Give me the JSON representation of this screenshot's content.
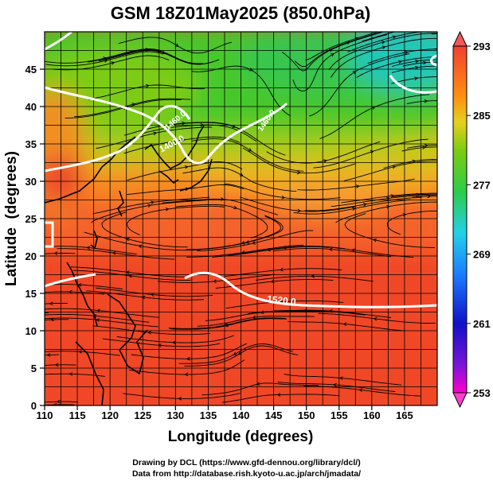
{
  "chart_data": {
    "type": "heatmap",
    "title": "GSM 18Z01May2025 (850.0hPa)",
    "xlabel": "Longitude (degrees)",
    "ylabel": "Latitude  (degrees)",
    "xlim": [
      110,
      170
    ],
    "ylim": [
      0,
      50
    ],
    "x_ticks": [
      110,
      115,
      120,
      125,
      130,
      135,
      140,
      145,
      150,
      155,
      160,
      165
    ],
    "y_ticks": [
      0,
      5,
      10,
      15,
      20,
      25,
      30,
      35,
      40,
      45
    ],
    "colorbar": {
      "variable": "temperature (K)",
      "ticks": [
        253,
        261,
        269,
        277,
        285,
        293
      ],
      "range": [
        253,
        293
      ]
    },
    "contour_labels": [
      {
        "text": "1400.0",
        "lon": 129,
        "lat": 38
      },
      {
        "text": "1520.0",
        "lon": 146,
        "lat": 14
      },
      {
        "text": "1460.0",
        "lon": 129.5,
        "lat": 41
      },
      {
        "text": "1460.0",
        "lon": 147,
        "lat": 41.5
      }
    ]
  },
  "footer": {
    "line1": "Drawing by DCL (https://www.gfd-dennou.org/library/dcl/)",
    "line2": "Data from http://database.rish.kyoto-u.ac.jp/arch/jmadata/"
  }
}
